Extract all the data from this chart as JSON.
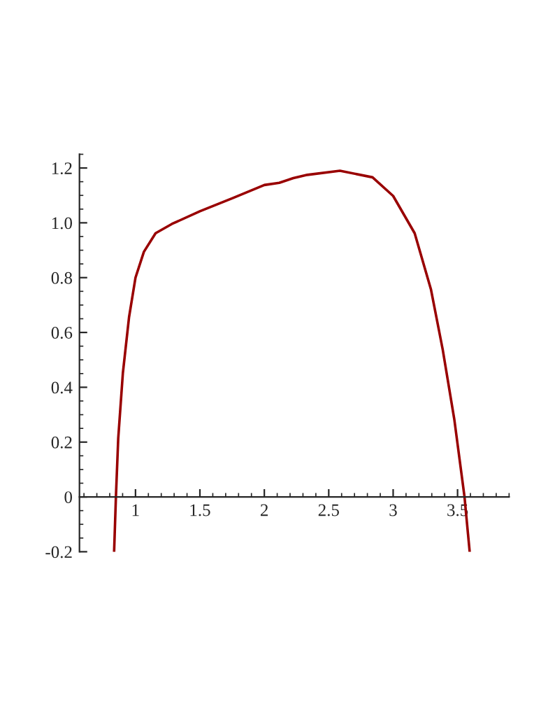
{
  "chart_data": {
    "type": "line",
    "x": [
      0.834,
      0.848,
      0.866,
      0.902,
      0.95,
      1.0,
      1.065,
      1.156,
      1.283,
      1.5,
      1.754,
      2.0,
      2.116,
      2.225,
      2.334,
      2.587,
      2.84,
      3.0,
      3.167,
      3.293,
      3.385,
      3.475,
      3.554,
      3.594
    ],
    "series": [
      {
        "color": "#990000",
        "values": [
          -0.2,
          0,
          0.214,
          0.452,
          0.656,
          0.8,
          0.894,
          0.962,
          0.996,
          1.042,
          1.09,
          1.138,
          1.146,
          1.163,
          1.175,
          1.19,
          1.166,
          1.098,
          0.962,
          0.758,
          0.537,
          0.282,
          0,
          -0.2
        ]
      }
    ],
    "xlim": [
      0.565,
      3.9
    ],
    "ylim": [
      -0.2,
      1.25
    ],
    "xticks": [
      1,
      1.5,
      2,
      2.5,
      3,
      3.5
    ],
    "yticks": [
      {
        "value": -0.2,
        "label": "-0.2"
      },
      {
        "value": 0,
        "label": "0"
      },
      {
        "value": 0.2,
        "label": "0.2"
      },
      {
        "value": 0.4,
        "label": "0.4"
      },
      {
        "value": 0.6,
        "label": "0.6"
      },
      {
        "value": 0.8,
        "label": "0.8"
      },
      {
        "value": 1.0,
        "label": "1.0"
      },
      {
        "value": 1.2,
        "label": "1.2"
      }
    ],
    "grid": false,
    "legend": false,
    "marker": "none",
    "line_style": "solid"
  }
}
